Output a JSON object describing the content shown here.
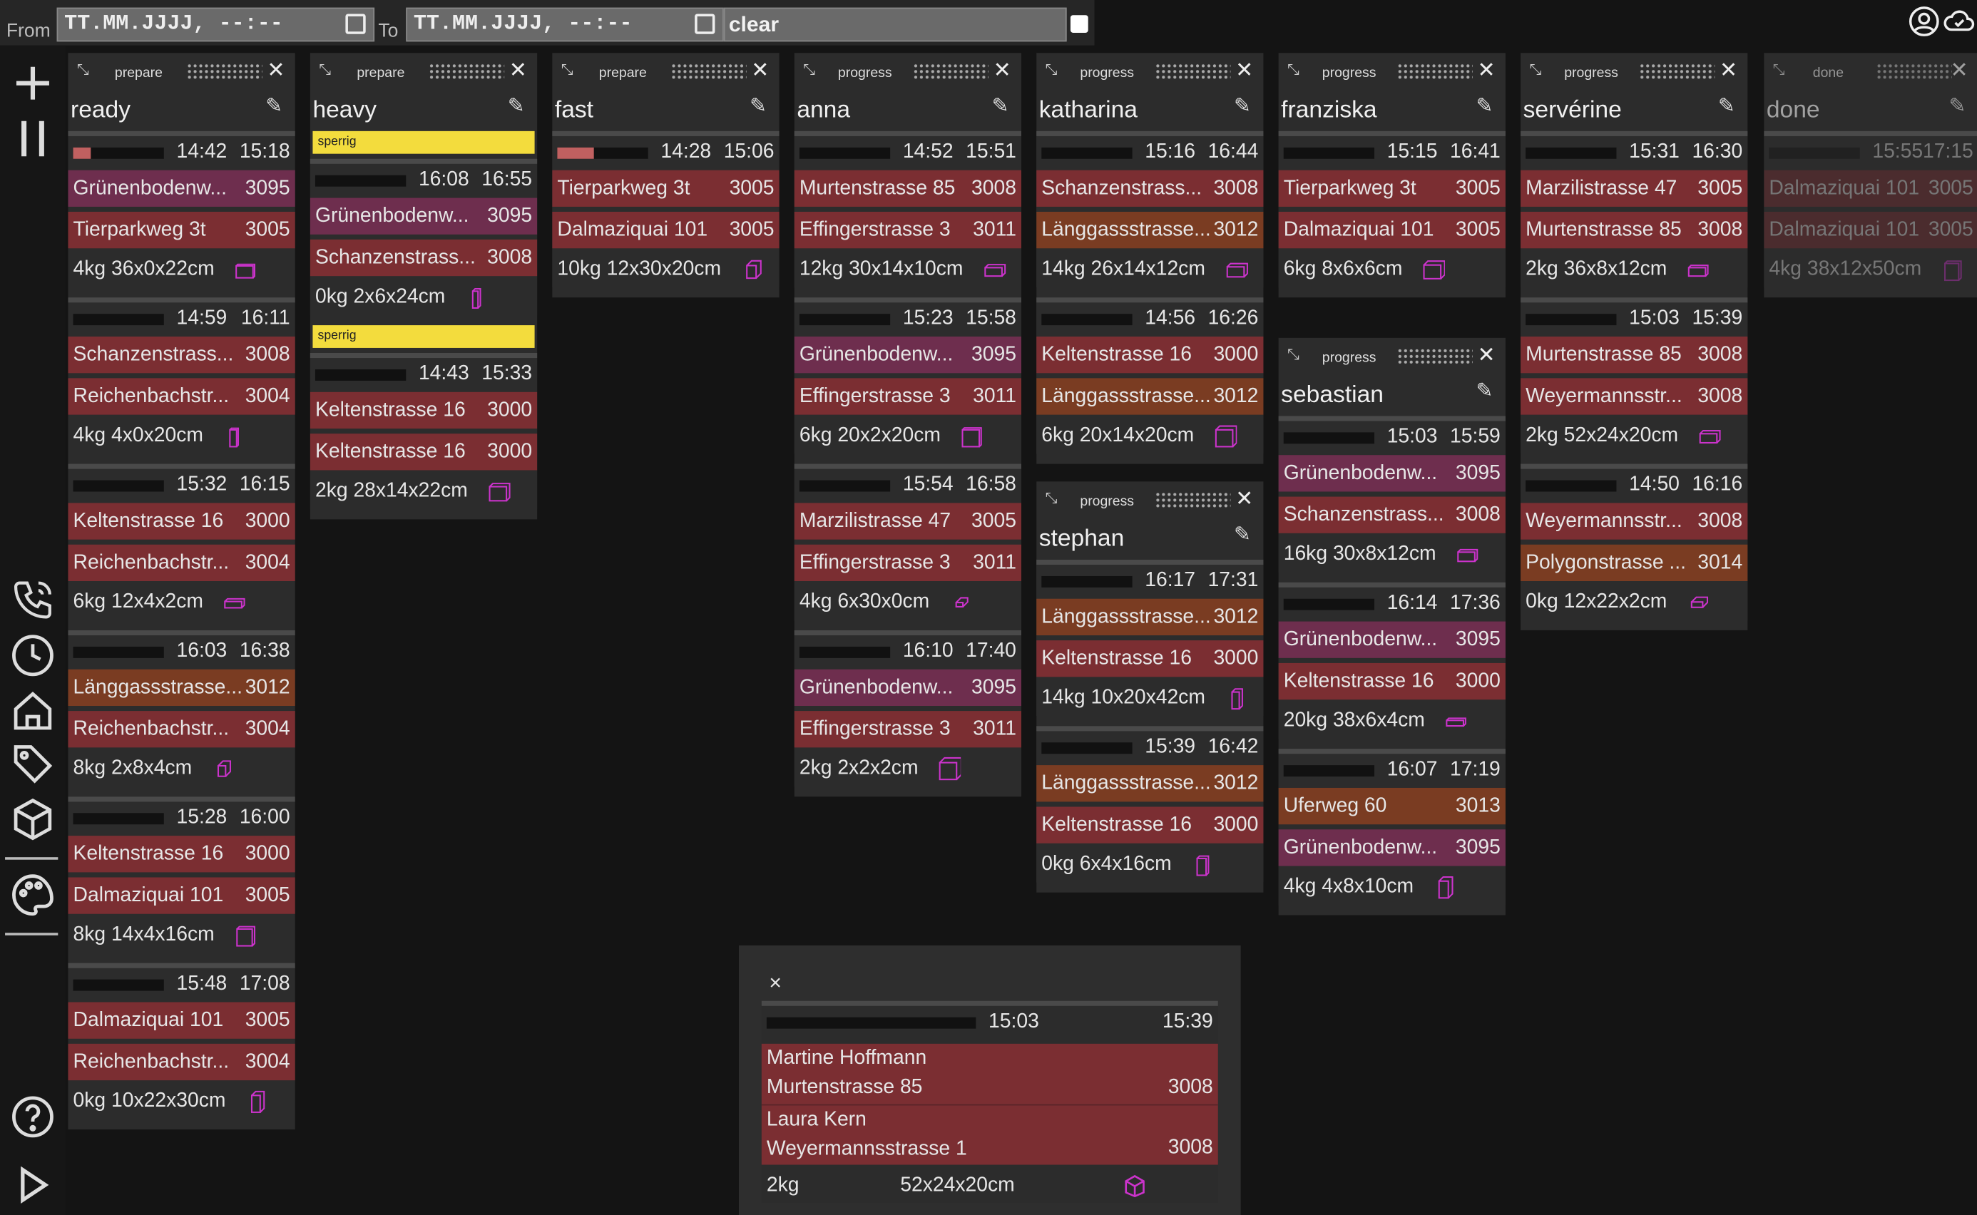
{
  "filter": {
    "from_label": "From",
    "to_label": "To",
    "from_placeholder": "TT.MM.JJJJ, --:--",
    "to_placeholder": "TT.MM.JJJJ, --:--",
    "clear_label": "clear"
  },
  "top_right_icons": [
    "account-icon",
    "cloud-sync-icon"
  ],
  "sidebar_icons": [
    "add-icon",
    "pause-icon",
    "phone-icon",
    "clock-icon",
    "home-icon",
    "tag-icon",
    "package-icon",
    "palette-icon",
    "help-icon",
    "play-icon"
  ],
  "colors": {
    "purple": "#6e2e4e",
    "red": "#7b2e32",
    "orange": "#7a3c22",
    "tag_yellow": "#f3dc3d",
    "icon_magenta": "#cc33cc"
  },
  "columns": [
    {
      "status": "prepare",
      "name": "ready",
      "cards": [
        {
          "progress": 0.2,
          "t1": "14:42",
          "t2": "15:18",
          "pickup": {
            "addr": "Grünenbodenw...",
            "zip": "3095",
            "c": "pr"
          },
          "drop": {
            "addr": "Tierparkweg 3t",
            "zip": "3005",
            "c": "rd"
          },
          "weight": "4kg",
          "dims": "36x0x22cm"
        },
        {
          "progress": 0,
          "t1": "14:59",
          "t2": "16:11",
          "pickup": {
            "addr": "Schanzenstrass...",
            "zip": "3008",
            "c": "rd"
          },
          "drop": {
            "addr": "Reichenbachstr...",
            "zip": "3004",
            "c": "rd"
          },
          "weight": "4kg",
          "dims": "4x0x20cm"
        },
        {
          "progress": 0,
          "t1": "15:32",
          "t2": "16:15",
          "pickup": {
            "addr": "Keltenstrasse 16",
            "zip": "3000",
            "c": "rd"
          },
          "drop": {
            "addr": "Reichenbachstr...",
            "zip": "3004",
            "c": "rd"
          },
          "weight": "6kg",
          "dims": "12x4x2cm"
        },
        {
          "progress": 0,
          "t1": "16:03",
          "t2": "16:38",
          "pickup": {
            "addr": "Länggassstrasse...",
            "zip": "3012",
            "c": "or"
          },
          "drop": {
            "addr": "Reichenbachstr...",
            "zip": "3004",
            "c": "rd"
          },
          "weight": "8kg",
          "dims": "2x8x4cm"
        },
        {
          "progress": 0,
          "t1": "15:28",
          "t2": "16:00",
          "pickup": {
            "addr": "Keltenstrasse 16",
            "zip": "3000",
            "c": "rd"
          },
          "drop": {
            "addr": "Dalmaziquai 101",
            "zip": "3005",
            "c": "rd"
          },
          "weight": "8kg",
          "dims": "14x4x16cm"
        },
        {
          "progress": 0,
          "t1": "15:48",
          "t2": "17:08",
          "pickup": {
            "addr": "Dalmaziquai 101",
            "zip": "3005",
            "c": "rd"
          },
          "drop": {
            "addr": "Reichenbachstr...",
            "zip": "3004",
            "c": "rd"
          },
          "weight": "0kg",
          "dims": "10x22x30cm"
        }
      ]
    },
    {
      "status": "prepare",
      "name": "heavy",
      "cards": [
        {
          "tag": "sperrig",
          "progress": 0,
          "t1": "16:08",
          "t2": "16:55",
          "pickup": {
            "addr": "Grünenbodenw...",
            "zip": "3095",
            "c": "pr"
          },
          "drop": {
            "addr": "Schanzenstrass...",
            "zip": "3008",
            "c": "rd"
          },
          "weight": "0kg",
          "dims": "2x6x24cm"
        },
        {
          "tag": "sperrig",
          "progress": 0,
          "t1": "14:43",
          "t2": "15:33",
          "pickup": {
            "addr": "Keltenstrasse 16",
            "zip": "3000",
            "c": "rd"
          },
          "drop": {
            "addr": "Keltenstrasse 16",
            "zip": "3000",
            "c": "rd"
          },
          "weight": "2kg",
          "dims": "28x14x22cm"
        }
      ]
    },
    {
      "status": "prepare",
      "name": "fast",
      "cards": [
        {
          "progress": 0.4,
          "t1": "14:28",
          "t2": "15:06",
          "pickup": {
            "addr": "Tierparkweg 3t",
            "zip": "3005",
            "c": "rd"
          },
          "drop": {
            "addr": "Dalmaziquai 101",
            "zip": "3005",
            "c": "rd"
          },
          "weight": "10kg",
          "dims": "12x30x20cm"
        }
      ]
    },
    {
      "status": "progress",
      "name": "anna",
      "cards": [
        {
          "progress": 0,
          "t1": "14:52",
          "t2": "15:51",
          "pickup": {
            "addr": "Murtenstrasse 85",
            "zip": "3008",
            "c": "rd"
          },
          "drop": {
            "addr": "Effingerstrasse 3",
            "zip": "3011",
            "c": "rd"
          },
          "weight": "12kg",
          "dims": "30x14x10cm"
        },
        {
          "progress": 0,
          "t1": "15:23",
          "t2": "15:58",
          "pickup": {
            "addr": "Grünenbodenw...",
            "zip": "3095",
            "c": "pr"
          },
          "drop": {
            "addr": "Effingerstrasse 3",
            "zip": "3011",
            "c": "rd"
          },
          "weight": "6kg",
          "dims": "20x2x20cm"
        },
        {
          "progress": 0,
          "t1": "15:54",
          "t2": "16:58",
          "pickup": {
            "addr": "Marzilistrasse 47",
            "zip": "3005",
            "c": "rd"
          },
          "drop": {
            "addr": "Effingerstrasse 3",
            "zip": "3011",
            "c": "rd"
          },
          "weight": "4kg",
          "dims": "6x30x0cm"
        },
        {
          "progress": 0,
          "t1": "16:10",
          "t2": "17:40",
          "pickup": {
            "addr": "Grünenbodenw...",
            "zip": "3095",
            "c": "pr"
          },
          "drop": {
            "addr": "Effingerstrasse 3",
            "zip": "3011",
            "c": "rd"
          },
          "weight": "2kg",
          "dims": "2x2x2cm"
        }
      ]
    },
    {
      "status": "progress",
      "name": "katharina",
      "cards": [
        {
          "progress": 0,
          "t1": "15:16",
          "t2": "16:44",
          "pickup": {
            "addr": "Schanzenstrass...",
            "zip": "3008",
            "c": "rd"
          },
          "drop": {
            "addr": "Länggassstrasse...",
            "zip": "3012",
            "c": "or"
          },
          "weight": "14kg",
          "dims": "26x14x12cm"
        },
        {
          "progress": 0,
          "t1": "14:56",
          "t2": "16:26",
          "pickup": {
            "addr": "Keltenstrasse 16",
            "zip": "3000",
            "c": "rd"
          },
          "drop": {
            "addr": "Länggassstrasse...",
            "zip": "3012",
            "c": "or"
          },
          "weight": "6kg",
          "dims": "20x14x20cm"
        }
      ]
    },
    {
      "status": "progress",
      "name": "stephan",
      "cards": [
        {
          "progress": 0,
          "t1": "16:17",
          "t2": "17:31",
          "pickup": {
            "addr": "Länggassstrasse...",
            "zip": "3012",
            "c": "or"
          },
          "drop": {
            "addr": "Keltenstrasse 16",
            "zip": "3000",
            "c": "rd"
          },
          "weight": "14kg",
          "dims": "10x20x42cm"
        },
        {
          "progress": 0,
          "t1": "15:39",
          "t2": "16:42",
          "pickup": {
            "addr": "Länggassstrasse...",
            "zip": "3012",
            "c": "or"
          },
          "drop": {
            "addr": "Keltenstrasse 16",
            "zip": "3000",
            "c": "rd"
          },
          "weight": "0kg",
          "dims": "6x4x16cm"
        }
      ]
    },
    {
      "status": "progress",
      "name": "franziska",
      "cards": [
        {
          "progress": 0,
          "t1": "15:15",
          "t2": "16:41",
          "pickup": {
            "addr": "Tierparkweg 3t",
            "zip": "3005",
            "c": "rd"
          },
          "drop": {
            "addr": "Dalmaziquai 101",
            "zip": "3005",
            "c": "rd"
          },
          "weight": "6kg",
          "dims": "8x6x6cm"
        }
      ]
    },
    {
      "status": "progress",
      "name": "sebastian",
      "cards": [
        {
          "progress": 0,
          "t1": "15:03",
          "t2": "15:59",
          "pickup": {
            "addr": "Grünenbodenw...",
            "zip": "3095",
            "c": "pr"
          },
          "drop": {
            "addr": "Schanzenstrass...",
            "zip": "3008",
            "c": "rd"
          },
          "weight": "16kg",
          "dims": "30x8x12cm"
        },
        {
          "progress": 0,
          "t1": "16:14",
          "t2": "17:36",
          "pickup": {
            "addr": "Grünenbodenw...",
            "zip": "3095",
            "c": "pr"
          },
          "drop": {
            "addr": "Keltenstrasse 16",
            "zip": "3000",
            "c": "rd"
          },
          "weight": "20kg",
          "dims": "38x6x4cm"
        },
        {
          "progress": 0,
          "t1": "16:07",
          "t2": "17:19",
          "pickup": {
            "addr": "Uferweg 60",
            "zip": "3013",
            "c": "or"
          },
          "drop": {
            "addr": "Grünenbodenw...",
            "zip": "3095",
            "c": "pr"
          },
          "weight": "4kg",
          "dims": "4x8x10cm"
        }
      ]
    },
    {
      "status": "progress",
      "name": "servérine",
      "cards": [
        {
          "progress": 0,
          "t1": "15:31",
          "t2": "16:30",
          "pickup": {
            "addr": "Marzilistrasse 47",
            "zip": "3005",
            "c": "rd"
          },
          "drop": {
            "addr": "Murtenstrasse 85",
            "zip": "3008",
            "c": "rd"
          },
          "weight": "2kg",
          "dims": "36x8x12cm"
        },
        {
          "progress": 0,
          "t1": "15:03",
          "t2": "15:39",
          "pickup": {
            "addr": "Murtenstrasse 85",
            "zip": "3008",
            "c": "rd"
          },
          "drop": {
            "addr": "Weyermannsstr...",
            "zip": "3008",
            "c": "rd"
          },
          "weight": "2kg",
          "dims": "52x24x20cm"
        },
        {
          "progress": 0,
          "t1": "14:50",
          "t2": "16:16",
          "pickup": {
            "addr": "Weyermannsstr...",
            "zip": "3008",
            "c": "rd"
          },
          "drop": {
            "addr": "Polygonstrasse ...",
            "zip": "3014",
            "c": "or"
          },
          "weight": "0kg",
          "dims": "12x22x2cm"
        }
      ]
    },
    {
      "status": "done",
      "name": "done",
      "cards": [
        {
          "progress": 0,
          "t1": "15:55",
          "t2": "17:15",
          "pickup": {
            "addr": "Dalmaziquai 101",
            "zip": "3005",
            "c": "rd"
          },
          "drop": {
            "addr": "Dalmaziquai 101",
            "zip": "3005",
            "c": "rd"
          },
          "weight": "4kg",
          "dims": "38x12x50cm"
        }
      ]
    }
  ],
  "popup": {
    "close": "×",
    "t1": "15:03",
    "t2": "15:39",
    "pickup_name": "Martine Hoffmann",
    "pickup_addr": "Murtenstrasse 85",
    "pickup_zip": "3008",
    "drop_name": "Laura Kern",
    "drop_addr": "Weyermannsstrasse 1",
    "drop_zip": "3008",
    "weight": "2kg",
    "dims": "52x24x20cm"
  }
}
